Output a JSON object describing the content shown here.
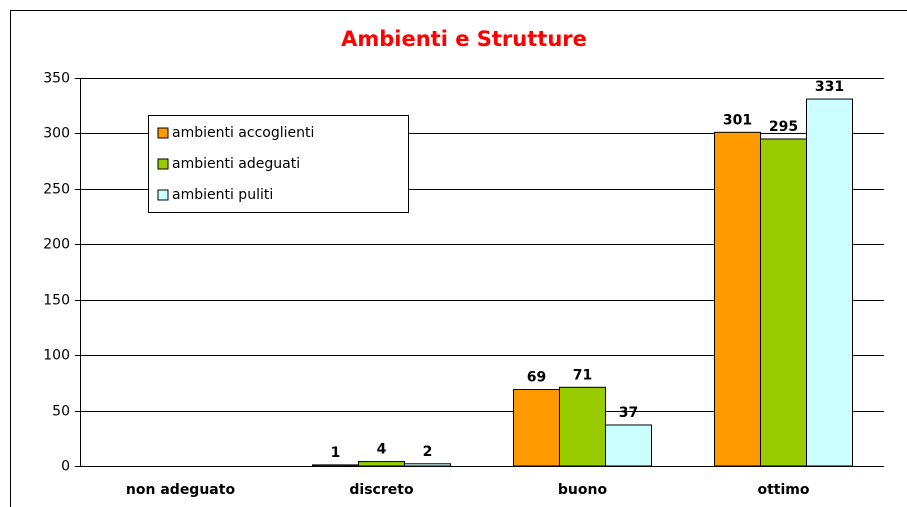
{
  "chart_data": {
    "type": "bar",
    "title": "Ambienti e Strutture",
    "categories": [
      "non adeguato",
      "discreto",
      "buono",
      "ottimo"
    ],
    "series": [
      {
        "name": "ambienti accoglienti",
        "color": "#ff9900",
        "values": [
          null,
          1,
          69,
          301
        ]
      },
      {
        "name": "ambienti adeguati",
        "color": "#99cc00",
        "values": [
          null,
          4,
          71,
          295
        ]
      },
      {
        "name": "ambienti puliti",
        "color": "#ccffff",
        "values": [
          null,
          2,
          37,
          331
        ]
      }
    ],
    "ylim": [
      0,
      350
    ],
    "yticks": [
      0,
      50,
      100,
      150,
      200,
      250,
      300,
      350
    ],
    "grid": true,
    "legend": "upper left"
  }
}
